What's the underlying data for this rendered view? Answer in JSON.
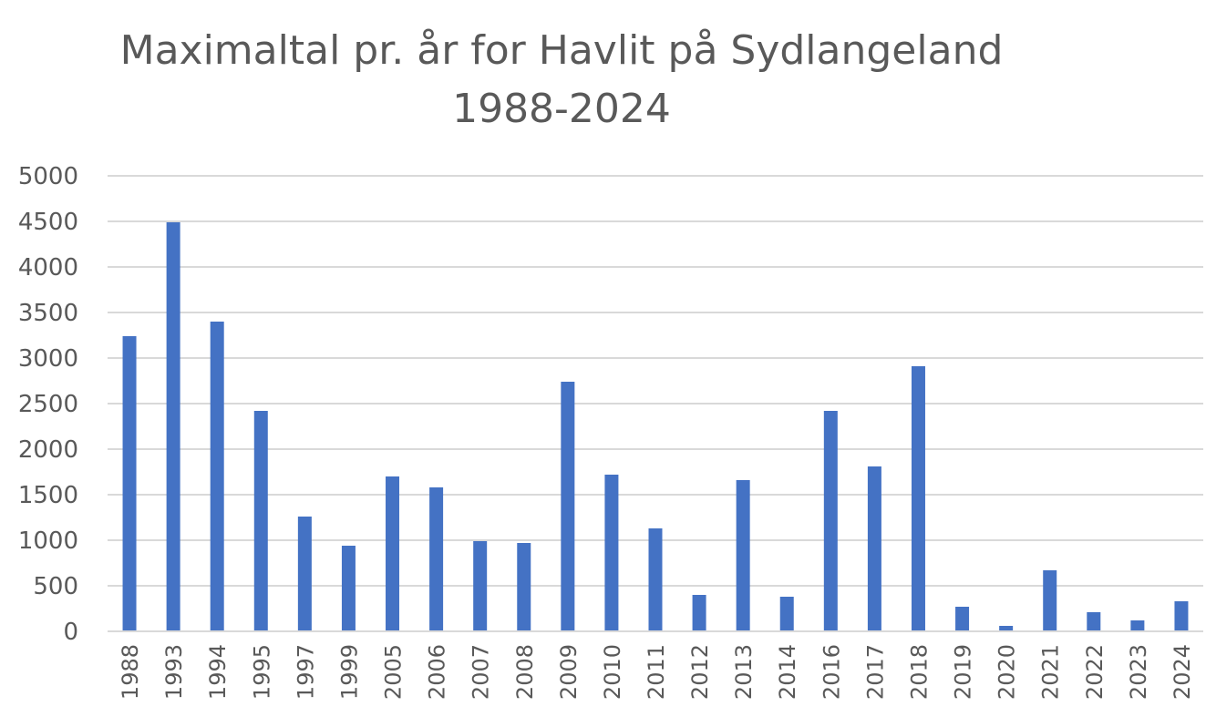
{
  "chart_data": {
    "type": "bar",
    "title_line1": "Maximaltal pr. år for Havlit på Sydlangeland",
    "title_line2": "1988-2024",
    "xlabel": "",
    "ylabel": "",
    "ylim": [
      0,
      5000
    ],
    "yticks": [
      "0",
      "500",
      "1000",
      "1500",
      "2000",
      "2500",
      "3000",
      "3500",
      "4000",
      "4500",
      "5000"
    ],
    "grid": true,
    "bar_color": "#4472c4",
    "categories": [
      "1988",
      "1993",
      "1994",
      "1995",
      "1997",
      "1999",
      "2005",
      "2006",
      "2007",
      "2008",
      "2009",
      "2010",
      "2011",
      "2012",
      "2013",
      "2014",
      "2016",
      "2017",
      "2018",
      "2019",
      "2020",
      "2021",
      "2022",
      "2023",
      "2024"
    ],
    "values": [
      3240,
      4490,
      3400,
      2420,
      1260,
      940,
      1700,
      1580,
      990,
      970,
      2740,
      1720,
      1130,
      400,
      1660,
      380,
      2420,
      1810,
      2910,
      270,
      60,
      670,
      210,
      120,
      330
    ]
  }
}
